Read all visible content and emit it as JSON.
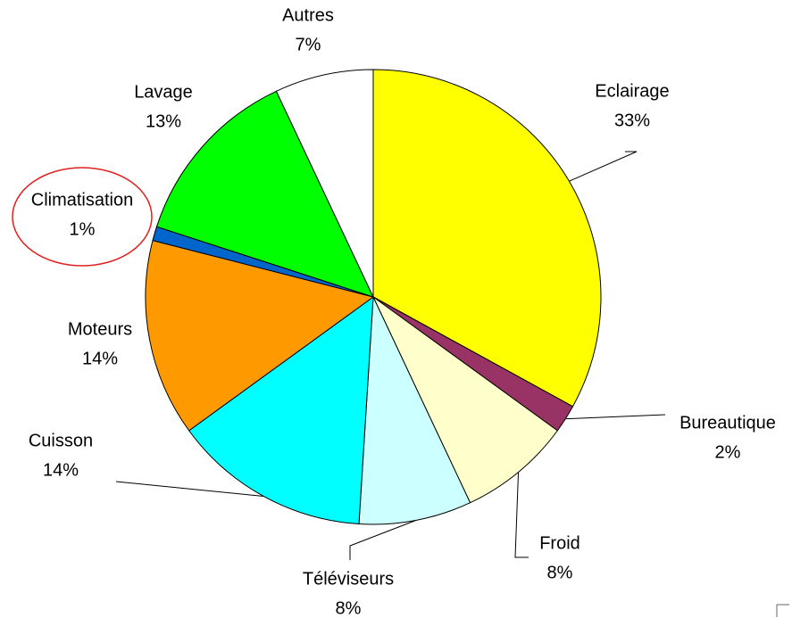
{
  "chart_data": {
    "type": "pie",
    "categories": [
      "Eclairage",
      "Bureautique",
      "Froid",
      "Téléviseurs",
      "Cuisson",
      "Moteurs",
      "Climatisation",
      "Lavage",
      "Autres"
    ],
    "values": [
      33,
      2,
      8,
      8,
      14,
      14,
      1,
      13,
      7
    ],
    "value_labels": [
      "33%",
      "2%",
      "8%",
      "8%",
      "14%",
      "14%",
      "1%",
      "13%",
      "7%"
    ],
    "colors": [
      "#ffff00",
      "#993366",
      "#ffffcc",
      "#ccffff",
      "#00ffff",
      "#ff9900",
      "#0066cc",
      "#00ff00",
      "#ffffff"
    ]
  }
}
